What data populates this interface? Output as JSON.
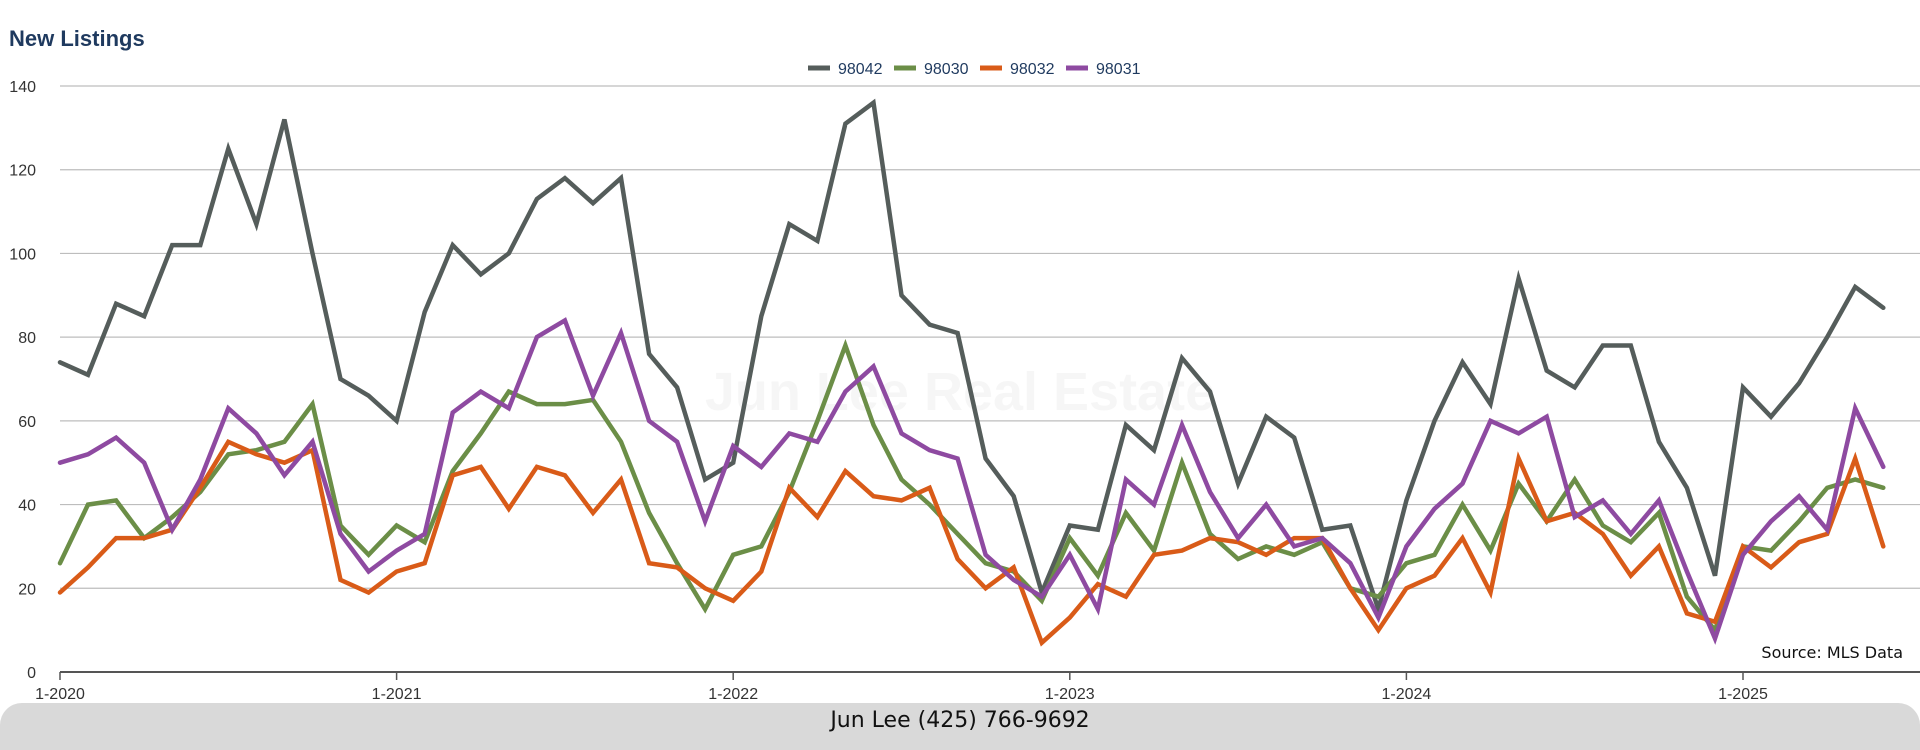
{
  "title": "New Listings",
  "watermark": "Jun Lee Real Estate",
  "source": "Source: MLS Data",
  "footer": "Jun Lee (425) 766-9692",
  "chart_data": {
    "type": "line",
    "y_ticks": [
      0,
      20,
      40,
      60,
      80,
      100,
      120,
      140
    ],
    "x_ticks": [
      "1-2020",
      "1-2021",
      "1-2022",
      "1-2023",
      "1-2024",
      "1-2025"
    ],
    "ylim": [
      0,
      140
    ],
    "grid": true,
    "legend_position": "top-center",
    "x_start": "1-2020",
    "series": [
      {
        "name": "98042",
        "color": "#555d5b",
        "values": [
          74,
          71,
          88,
          85,
          102,
          102,
          125,
          107,
          132,
          100,
          70,
          66,
          60,
          86,
          102,
          95,
          100,
          113,
          118,
          112,
          118,
          76,
          68,
          46,
          50,
          85,
          107,
          103,
          131,
          136,
          90,
          83,
          81,
          51,
          42,
          19,
          35,
          34,
          59,
          53,
          75,
          67,
          45,
          61,
          56,
          34,
          35,
          15,
          41,
          60,
          74,
          64,
          94,
          72,
          68,
          78,
          78,
          55,
          44,
          23,
          68,
          61,
          69,
          80,
          92,
          87
        ]
      },
      {
        "name": "98030",
        "color": "#6b8e47",
        "values": [
          26,
          40,
          41,
          32,
          37,
          43,
          52,
          53,
          55,
          64,
          35,
          28,
          35,
          31,
          48,
          57,
          67,
          64,
          64,
          65,
          55,
          38,
          26,
          15,
          28,
          30,
          43,
          60,
          78,
          59,
          46,
          40,
          33,
          26,
          24,
          17,
          32,
          23,
          38,
          29,
          50,
          33,
          27,
          30,
          28,
          31,
          20,
          18,
          26,
          28,
          40,
          29,
          45,
          36,
          46,
          35,
          31,
          38,
          18,
          10,
          30,
          29,
          36,
          44,
          46,
          44
        ]
      },
      {
        "name": "98032",
        "color": "#d95b18",
        "values": [
          19,
          25,
          32,
          32,
          34,
          44,
          55,
          52,
          50,
          53,
          22,
          19,
          24,
          26,
          47,
          49,
          39,
          49,
          47,
          38,
          46,
          26,
          25,
          20,
          17,
          24,
          44,
          37,
          48,
          42,
          41,
          44,
          27,
          20,
          25,
          7,
          13,
          21,
          18,
          28,
          29,
          32,
          31,
          28,
          32,
          32,
          20,
          10,
          20,
          23,
          32,
          19,
          51,
          36,
          38,
          33,
          23,
          30,
          14,
          12,
          30,
          25,
          31,
          33,
          51,
          30
        ]
      },
      {
        "name": "98031",
        "color": "#8e4aa1",
        "values": [
          50,
          52,
          56,
          50,
          34,
          46,
          63,
          57,
          47,
          55,
          33,
          24,
          29,
          33,
          62,
          67,
          63,
          80,
          84,
          66,
          81,
          60,
          55,
          36,
          54,
          49,
          57,
          55,
          67,
          73,
          57,
          53,
          51,
          28,
          22,
          18,
          28,
          15,
          46,
          40,
          59,
          43,
          32,
          40,
          30,
          32,
          26,
          13,
          30,
          39,
          45,
          60,
          57,
          61,
          37,
          41,
          33,
          41,
          24,
          8,
          28,
          36,
          42,
          34,
          63,
          49
        ]
      }
    ]
  }
}
